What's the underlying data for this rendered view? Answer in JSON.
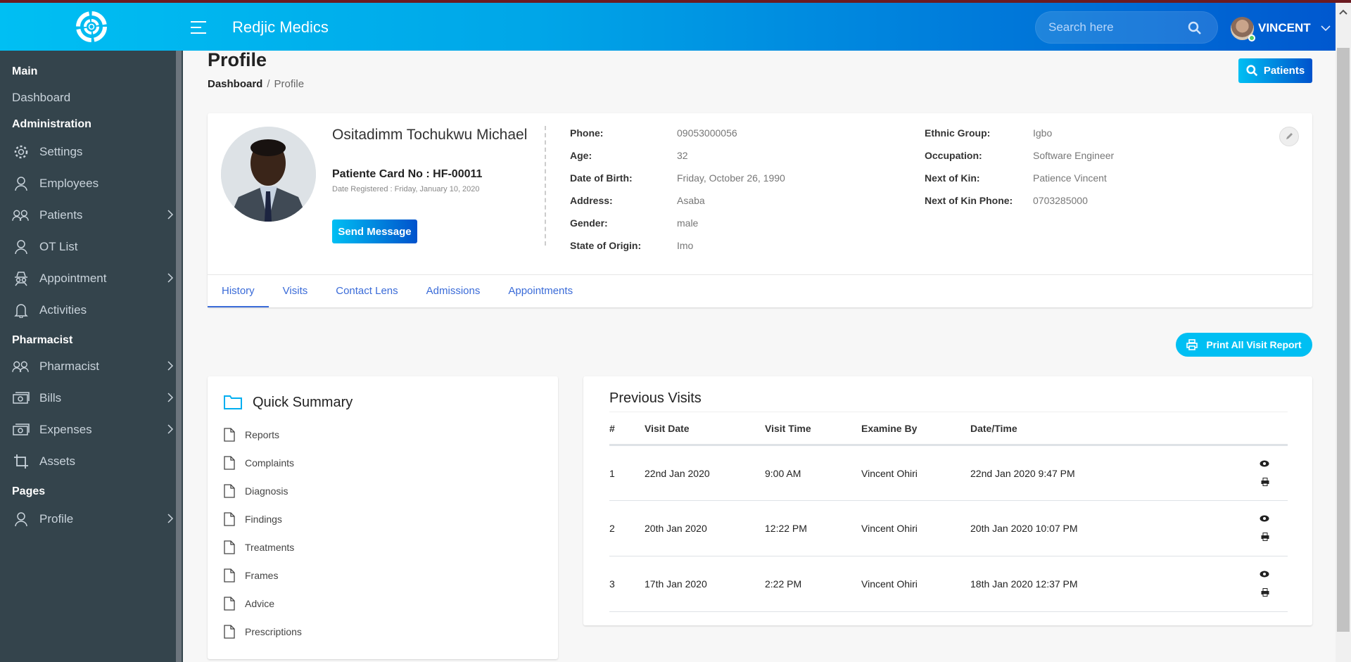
{
  "header": {
    "brand": "Redjic Medics",
    "search_placeholder": "Search here",
    "user_name": "VINCENT"
  },
  "sidebar": {
    "sections": [
      {
        "label": "Main"
      },
      {
        "label": "Administration"
      },
      {
        "label": "Pharmacist"
      },
      {
        "label": "Pages"
      }
    ],
    "items": [
      {
        "label": "Dashboard",
        "icon": "none"
      },
      {
        "label": "Settings",
        "icon": "gear-icon"
      },
      {
        "label": "Employees",
        "icon": "user-icon"
      },
      {
        "label": "Patients",
        "icon": "users-icon"
      },
      {
        "label": "OT List",
        "icon": "user-icon"
      },
      {
        "label": "Appointment",
        "icon": "spy-icon"
      },
      {
        "label": "Activities",
        "icon": "bell-icon"
      },
      {
        "label": "Pharmacist",
        "icon": "users-icon"
      },
      {
        "label": "Bills",
        "icon": "money-icon"
      },
      {
        "label": "Expenses",
        "icon": "money-icon"
      },
      {
        "label": "Assets",
        "icon": "crop-icon"
      },
      {
        "label": "Profile",
        "icon": "user-icon"
      }
    ]
  },
  "page": {
    "title": "Profile",
    "breadcrumb": [
      "Dashboard",
      "/",
      "Profile"
    ],
    "patients_button": "Patients"
  },
  "profile": {
    "name": "Ositadimm Tochukwu Michael",
    "card_no": "Patiente Card No : HF-00011",
    "registered": "Date Registered : Friday, January 10, 2020",
    "send_message": "Send Message",
    "left_fields": [
      {
        "label": "Phone:",
        "value": "09053000056"
      },
      {
        "label": "Age:",
        "value": "32"
      },
      {
        "label": "Date of Birth:",
        "value": "Friday, October 26, 1990"
      },
      {
        "label": "Address:",
        "value": "Asaba"
      },
      {
        "label": "Gender:",
        "value": "male"
      },
      {
        "label": "State of Origin:",
        "value": "Imo"
      }
    ],
    "right_fields": [
      {
        "label": "Ethnic Group:",
        "value": "Igbo"
      },
      {
        "label": "Occupation:",
        "value": "Software Engineer"
      },
      {
        "label": "Next of Kin:",
        "value": "Patience Vincent"
      },
      {
        "label": "Next of Kin Phone:",
        "value": "0703285000"
      }
    ],
    "tabs": [
      "History",
      "Visits",
      "Contact Lens",
      "Admissions",
      "Appointments"
    ]
  },
  "print_all": "Print All Visit Report",
  "quick_summary": {
    "title": "Quick Summary",
    "items": [
      "Reports",
      "Complaints",
      "Diagnosis",
      "Findings",
      "Treatments",
      "Frames",
      "Advice",
      "Prescriptions"
    ]
  },
  "previous_visits": {
    "title": "Previous Visits",
    "columns": [
      "#",
      "Visit Date",
      "Visit Time",
      "Examine By",
      "Date/Time"
    ],
    "rows": [
      [
        "1",
        "22nd Jan 2020",
        "9:00 AM",
        "Vincent Ohiri",
        "22nd Jan 2020 9:47 PM"
      ],
      [
        "2",
        "20th Jan 2020",
        "12:22 PM",
        "Vincent Ohiri",
        "20th Jan 2020 10:07 PM"
      ],
      [
        "3",
        "17th Jan 2020",
        "2:22 PM",
        "Vincent Ohiri",
        "18th Jan 2020 12:37 PM"
      ]
    ]
  }
}
